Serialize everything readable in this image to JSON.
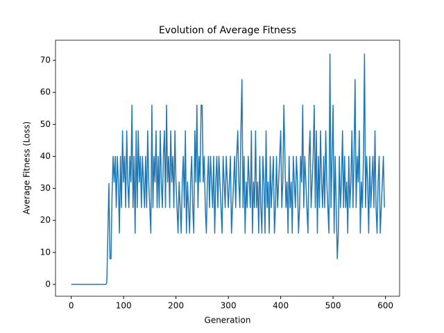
{
  "chart_data": {
    "type": "line",
    "title": "Evolution of Average Fitness",
    "xlabel": "Generation",
    "ylabel": "Average Fitness (Loss)",
    "xlim": [
      -30,
      627
    ],
    "ylim": [
      -3.7,
      76.3
    ],
    "xticks": [
      0,
      100,
      200,
      300,
      400,
      500,
      600
    ],
    "yticks": [
      0,
      10,
      20,
      30,
      40,
      50,
      60,
      70
    ],
    "x": [
      0,
      2,
      4,
      6,
      8,
      10,
      12,
      14,
      16,
      18,
      20,
      22,
      24,
      26,
      28,
      30,
      32,
      34,
      36,
      38,
      40,
      42,
      44,
      46,
      48,
      50,
      52,
      54,
      56,
      58,
      60,
      62,
      64,
      66,
      68,
      70,
      72,
      74,
      76,
      78,
      80,
      82,
      84,
      86,
      88,
      90,
      92,
      94,
      96,
      98,
      100,
      102,
      104,
      106,
      108,
      110,
      112,
      114,
      116,
      118,
      120,
      122,
      124,
      126,
      128,
      130,
      132,
      134,
      136,
      138,
      140,
      142,
      144,
      146,
      148,
      150,
      152,
      154,
      156,
      158,
      160,
      162,
      164,
      166,
      168,
      170,
      172,
      174,
      176,
      178,
      180,
      182,
      184,
      186,
      188,
      190,
      192,
      194,
      196,
      198,
      200,
      202,
      204,
      206,
      208,
      210,
      212,
      214,
      216,
      218,
      220,
      222,
      224,
      226,
      228,
      230,
      232,
      234,
      236,
      238,
      240,
      242,
      244,
      246,
      248,
      250,
      252,
      254,
      256,
      258,
      260,
      262,
      264,
      266,
      268,
      270,
      272,
      274,
      276,
      278,
      280,
      282,
      284,
      286,
      288,
      290,
      292,
      294,
      296,
      298,
      300,
      302,
      304,
      306,
      308,
      310,
      312,
      314,
      316,
      318,
      320,
      322,
      324,
      326,
      328,
      330,
      332,
      334,
      336,
      338,
      340,
      342,
      344,
      346,
      348,
      350,
      352,
      354,
      356,
      358,
      360,
      362,
      364,
      366,
      368,
      370,
      372,
      374,
      376,
      378,
      380,
      382,
      384,
      386,
      388,
      390,
      392,
      394,
      396,
      398,
      400,
      402,
      404,
      406,
      408,
      410,
      412,
      414,
      416,
      418,
      420,
      422,
      424,
      426,
      428,
      430,
      432,
      434,
      436,
      438,
      440,
      442,
      444,
      446,
      448,
      450,
      452,
      454,
      456,
      458,
      460,
      462,
      464,
      466,
      468,
      470,
      472,
      474,
      476,
      478,
      480,
      482,
      484,
      486,
      488,
      490,
      492,
      494,
      496,
      498,
      500,
      502,
      504,
      506,
      508,
      510,
      512,
      514,
      516,
      518,
      520,
      522,
      524,
      526,
      528,
      530,
      532,
      534,
      536,
      538,
      540,
      542,
      544,
      546,
      548,
      550,
      552,
      554,
      556,
      558,
      560,
      562,
      564,
      566,
      568,
      570,
      572,
      574,
      576,
      578,
      580,
      582,
      584,
      586,
      588,
      590,
      592,
      594,
      596,
      598
    ],
    "series": [
      {
        "name": "Average Fitness",
        "color": "#1f77b4",
        "values": [
          0,
          0,
          0,
          0,
          0,
          0,
          0,
          0,
          0,
          0,
          0,
          0,
          0,
          0,
          0,
          0,
          0,
          0,
          0,
          0,
          0,
          0,
          0,
          0,
          0,
          0,
          0,
          0,
          0,
          0,
          0,
          0,
          0,
          0,
          0.5,
          16,
          31.5,
          8,
          8,
          28,
          40,
          32,
          40,
          24,
          40,
          32,
          16,
          40,
          24,
          48,
          32,
          40,
          24,
          48,
          32,
          24,
          40,
          32,
          56,
          24,
          40,
          16,
          48,
          24,
          48,
          32,
          40,
          24,
          40,
          32,
          24,
          40,
          24,
          48,
          32,
          24,
          16,
          56,
          24,
          40,
          32,
          48,
          24,
          40,
          24,
          48,
          32,
          24,
          40,
          48,
          24,
          56,
          32,
          40,
          24,
          48,
          32,
          40,
          24,
          48,
          32,
          24,
          16,
          32,
          24,
          16,
          32,
          40,
          24,
          48,
          16,
          32,
          24,
          16,
          32,
          40,
          24,
          16,
          48,
          32,
          56,
          24,
          40,
          32,
          56,
          56,
          32,
          40,
          24,
          16,
          32,
          40,
          24,
          40,
          32,
          24,
          40,
          16,
          32,
          40,
          24,
          40,
          32,
          24,
          16,
          40,
          32,
          24,
          40,
          32,
          24,
          32,
          40,
          16,
          24,
          32,
          40,
          24,
          40,
          48,
          32,
          24,
          48,
          64,
          24,
          40,
          16,
          32,
          24,
          40,
          32,
          24,
          48,
          16,
          32,
          24,
          48,
          24,
          32,
          16,
          40,
          24,
          16,
          40,
          32,
          16,
          48,
          24,
          32,
          16,
          40,
          24,
          32,
          40,
          16,
          24,
          40,
          24,
          32,
          40,
          48,
          24,
          32,
          56,
          40,
          24,
          32,
          16,
          40,
          24,
          32,
          16,
          40,
          32,
          24,
          40,
          32,
          16,
          24,
          40,
          32,
          56,
          24,
          40,
          32,
          24,
          16,
          40,
          48,
          24,
          32,
          40,
          56,
          24,
          48,
          16,
          40,
          24,
          48,
          32,
          24,
          40,
          24,
          48,
          32,
          24,
          16,
          72,
          24,
          40,
          56,
          16,
          40,
          24,
          8,
          16,
          40,
          24,
          32,
          48,
          24,
          40,
          24,
          32,
          16,
          40,
          24,
          32,
          48,
          24,
          40,
          64,
          24,
          40,
          32,
          48,
          16,
          32,
          24,
          40,
          72,
          24,
          40,
          32,
          16,
          40,
          24,
          32,
          40,
          24,
          48,
          24,
          16,
          32,
          40,
          16,
          24,
          32,
          40,
          24
        ]
      }
    ]
  }
}
